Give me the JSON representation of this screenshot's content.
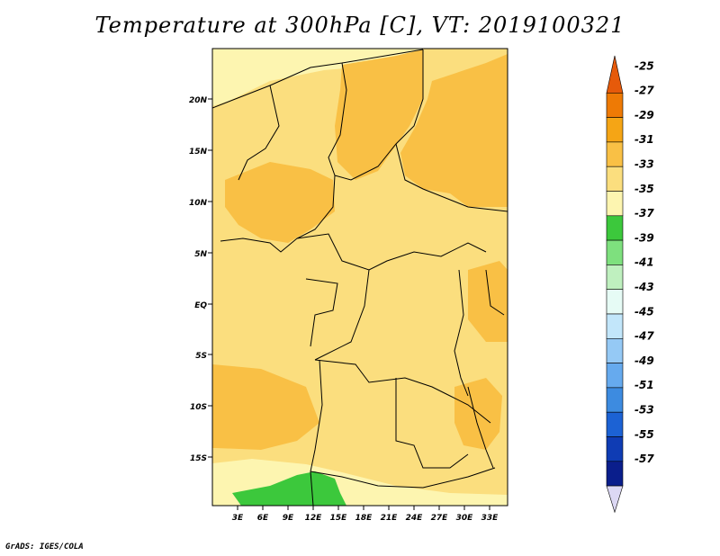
{
  "title": "Temperature at 300hPa [C], VT: 2019100321",
  "credit": "GrADS: IGES/COLA",
  "map": {
    "lat_ticks": [
      "20N",
      "15N",
      "10N",
      "5N",
      "EQ",
      "5S",
      "10S",
      "15S"
    ],
    "lon_ticks": [
      "3E",
      "6E",
      "9E",
      "12E",
      "15E",
      "18E",
      "21E",
      "24E",
      "27E",
      "30E",
      "33E"
    ]
  },
  "colorbar": {
    "labels": [
      "-25",
      "-27",
      "-29",
      "-31",
      "-33",
      "-35",
      "-37",
      "-39",
      "-41",
      "-43",
      "-45",
      "-47",
      "-49",
      "-51",
      "-53",
      "-55",
      "-57"
    ],
    "colors": [
      "#e65a0a",
      "#ee7a05",
      "#f5a515",
      "#f9c045",
      "#fbde7e",
      "#fdf5b0",
      "#3cc83c",
      "#7ee07e",
      "#bff0bf",
      "#e6fbf5",
      "#c2e6fa",
      "#95c9f5",
      "#66aaee",
      "#3d8be0",
      "#1c62d4",
      "#0f3cb4",
      "#0a1e8c",
      "#dcd8f4"
    ]
  }
}
